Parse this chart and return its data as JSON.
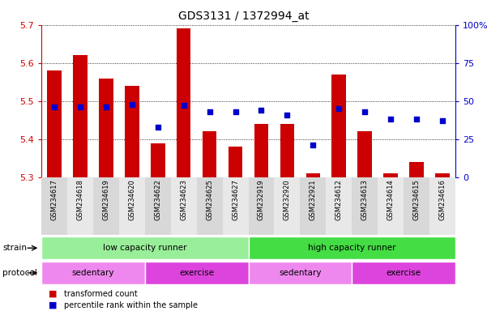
{
  "title": "GDS3131 / 1372994_at",
  "samples": [
    "GSM234617",
    "GSM234618",
    "GSM234619",
    "GSM234620",
    "GSM234622",
    "GSM234623",
    "GSM234625",
    "GSM234627",
    "GSM232919",
    "GSM232920",
    "GSM232921",
    "GSM234612",
    "GSM234613",
    "GSM234614",
    "GSM234615",
    "GSM234616"
  ],
  "bar_values": [
    5.58,
    5.62,
    5.56,
    5.54,
    5.39,
    5.69,
    5.42,
    5.38,
    5.44,
    5.44,
    5.31,
    5.57,
    5.42,
    5.31,
    5.34,
    5.31
  ],
  "dot_values": [
    0.46,
    0.46,
    0.46,
    0.48,
    0.33,
    0.47,
    0.43,
    0.43,
    0.44,
    0.41,
    0.21,
    0.45,
    0.43,
    0.38,
    0.38,
    0.37
  ],
  "ymin": 5.3,
  "ymax": 5.7,
  "yticks": [
    5.3,
    5.4,
    5.5,
    5.6,
    5.7
  ],
  "bar_color": "#cc0000",
  "dot_color": "#0000cc",
  "right_yticks": [
    0.0,
    0.25,
    0.5,
    0.75,
    1.0
  ],
  "right_yticklabels": [
    "0",
    "25",
    "50",
    "75",
    "100%"
  ],
  "strain_groups": [
    {
      "label": "low capacity runner",
      "start": 0,
      "end": 8,
      "color": "#99ee99"
    },
    {
      "label": "high capacity runner",
      "start": 8,
      "end": 16,
      "color": "#44dd44"
    }
  ],
  "protocol_groups": [
    {
      "label": "sedentary",
      "start": 0,
      "end": 4,
      "color": "#ee88ee"
    },
    {
      "label": "exercise",
      "start": 4,
      "end": 8,
      "color": "#dd44dd"
    },
    {
      "label": "sedentary",
      "start": 8,
      "end": 12,
      "color": "#ee88ee"
    },
    {
      "label": "exercise",
      "start": 12,
      "end": 16,
      "color": "#dd44dd"
    }
  ],
  "legend_red_label": "transformed count",
  "legend_blue_label": "percentile rank within the sample",
  "bar_color_leg": "#cc0000",
  "dot_color_leg": "#0000cc",
  "plot_bg_color": "#ffffff",
  "grid_color": "#000000",
  "tick_color_left": "#cc0000",
  "tick_color_right": "#0000cc",
  "xlabel_color": "#000000",
  "sample_bg_even": "#d8d8d8",
  "sample_bg_odd": "#e8e8e8"
}
